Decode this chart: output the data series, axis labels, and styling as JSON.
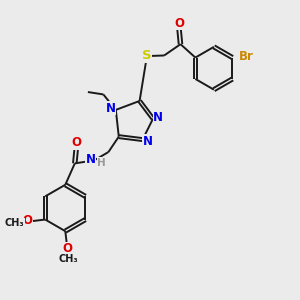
{
  "background_color": "#ebebeb",
  "bond_color": "#1a1a1a",
  "atom_colors": {
    "N": "#0000ee",
    "O": "#dd0000",
    "S": "#cccc00",
    "Br": "#cc8800",
    "H": "#999999",
    "C": "#1a1a1a"
  },
  "lw": 1.4,
  "fs": 8.5,
  "figsize": [
    3.0,
    3.0
  ],
  "dpi": 100
}
